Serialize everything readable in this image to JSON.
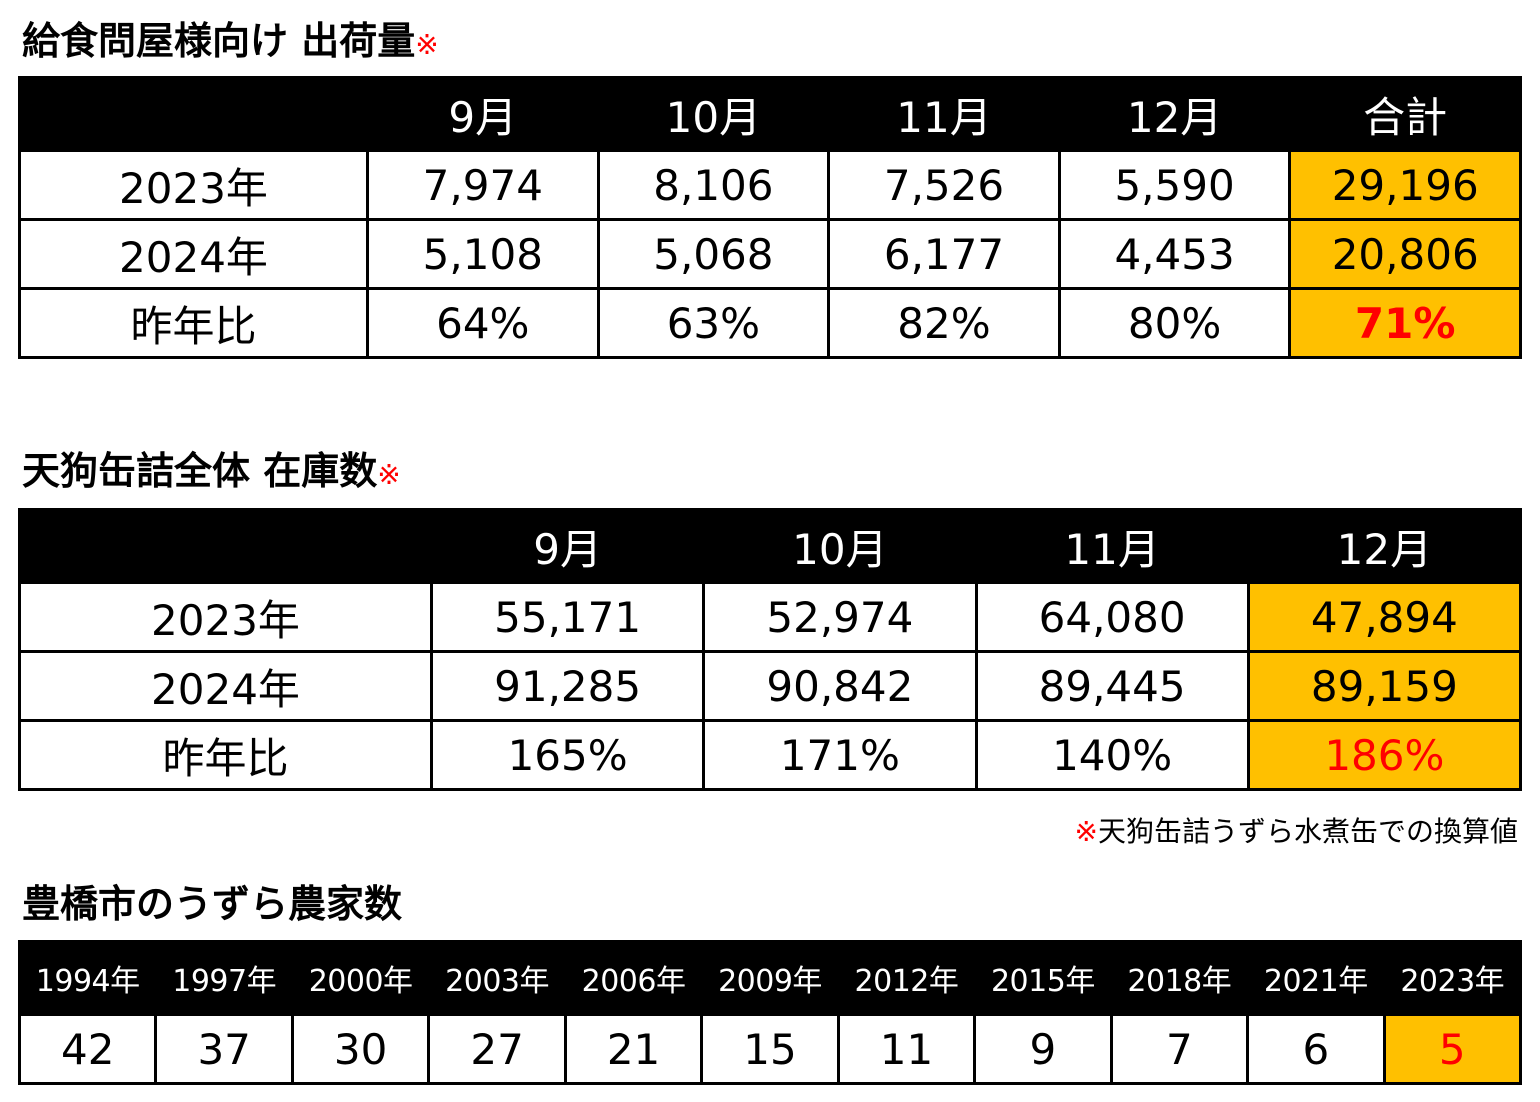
{
  "section1": {
    "title": "給食問屋様向け 出荷量",
    "mark": "※",
    "header": [
      "",
      "9月",
      "10月",
      "11月",
      "12月",
      "合計"
    ],
    "rows": [
      [
        "2023年",
        "7,974",
        "8,106",
        "7,526",
        "5,590",
        "29,196"
      ],
      [
        "2024年",
        "5,108",
        "5,068",
        "6,177",
        "4,453",
        "20,806"
      ],
      [
        "昨年比",
        "64%",
        "63%",
        "82%",
        "80%",
        "71%"
      ]
    ]
  },
  "section2": {
    "title": "天狗缶詰全体 在庫数",
    "mark": "※",
    "header": [
      "",
      "9月",
      "10月",
      "11月",
      "12月"
    ],
    "rows": [
      [
        "2023年",
        "55,171",
        "52,974",
        "64,080",
        "47,894"
      ],
      [
        "2024年",
        "91,285",
        "90,842",
        "89,445",
        "89,159"
      ],
      [
        "昨年比",
        "165%",
        "171%",
        "140%",
        "186%"
      ]
    ]
  },
  "note": {
    "mark": "※",
    "text": "天狗缶詰うずら水煮缶での換算値"
  },
  "section3": {
    "title": "豊橋市のうずら農家数",
    "header": [
      "1994年",
      "1997年",
      "2000年",
      "2003年",
      "2006年",
      "2009年",
      "2012年",
      "2015年",
      "2018年",
      "2021年",
      "2023年"
    ],
    "values": [
      "42",
      "37",
      "30",
      "27",
      "21",
      "15",
      "11",
      "9",
      "7",
      "6",
      "5"
    ]
  },
  "colors": {
    "header_bg": "#000000",
    "highlight": "#ffc000",
    "accent_red": "#ff0000"
  }
}
